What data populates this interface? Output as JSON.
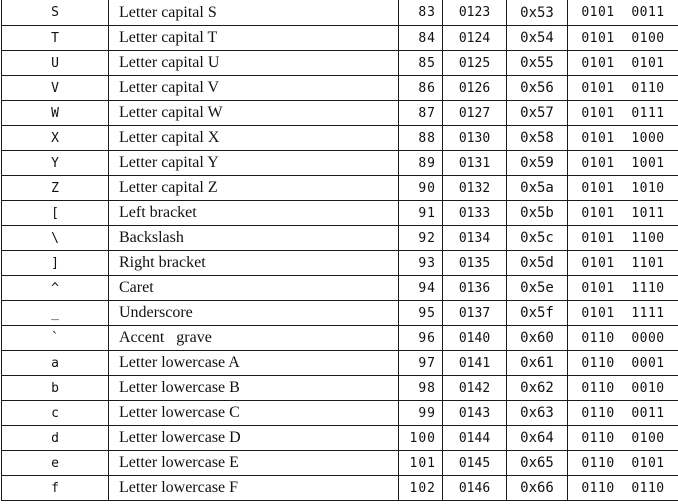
{
  "rows": [
    {
      "char": "S",
      "desc": "Letter capital S",
      "dec": "83",
      "oct": "0123",
      "hex": "0x53",
      "bin": "0101  0011"
    },
    {
      "char": "T",
      "desc": "Letter capital T",
      "dec": "84",
      "oct": "0124",
      "hex": "0x54",
      "bin": "0101  0100"
    },
    {
      "char": "U",
      "desc": "Letter capital U",
      "dec": "85",
      "oct": "0125",
      "hex": "0x55",
      "bin": "0101  0101"
    },
    {
      "char": "V",
      "desc": "Letter capital V",
      "dec": "86",
      "oct": "0126",
      "hex": "0x56",
      "bin": "0101  0110"
    },
    {
      "char": "W",
      "desc": "Letter capital W",
      "dec": "87",
      "oct": "0127",
      "hex": "0x57",
      "bin": "0101  0111"
    },
    {
      "char": "X",
      "desc": "Letter capital X",
      "dec": "88",
      "oct": "0130",
      "hex": "0x58",
      "bin": "0101  1000"
    },
    {
      "char": "Y",
      "desc": "Letter capital Y",
      "dec": "89",
      "oct": "0131",
      "hex": "0x59",
      "bin": "0101  1001"
    },
    {
      "char": "Z",
      "desc": "Letter capital Z",
      "dec": "90",
      "oct": "0132",
      "hex": "0x5a",
      "bin": "0101  1010"
    },
    {
      "char": "[",
      "desc": "Left bracket",
      "dec": "91",
      "oct": "0133",
      "hex": "0x5b",
      "bin": "0101  1011"
    },
    {
      "char": "\\",
      "desc": "Backslash",
      "dec": "92",
      "oct": "0134",
      "hex": "0x5c",
      "bin": "0101  1100"
    },
    {
      "char": "]",
      "desc": "Right bracket",
      "dec": "93",
      "oct": "0135",
      "hex": "0x5d",
      "bin": "0101  1101"
    },
    {
      "char": "^",
      "desc": "Caret",
      "dec": "94",
      "oct": "0136",
      "hex": "0x5e",
      "bin": "0101  1110"
    },
    {
      "char": "_",
      "desc": "Underscore",
      "dec": "95",
      "oct": "0137",
      "hex": "0x5f",
      "bin": "0101  1111"
    },
    {
      "char": "`",
      "desc": "Accent   grave",
      "dec": "96",
      "oct": "0140",
      "hex": "0x60",
      "bin": "0110  0000"
    },
    {
      "char": "a",
      "desc": "Letter lowercase A",
      "dec": "97",
      "oct": "0141",
      "hex": "0x61",
      "bin": "0110  0001"
    },
    {
      "char": "b",
      "desc": "Letter lowercase B",
      "dec": "98",
      "oct": "0142",
      "hex": "0x62",
      "bin": "0110  0010"
    },
    {
      "char": "c",
      "desc": "Letter lowercase C",
      "dec": "99",
      "oct": "0143",
      "hex": "0x63",
      "bin": "0110  0011"
    },
    {
      "char": "d",
      "desc": "Letter lowercase D",
      "dec": "100",
      "oct": "0144",
      "hex": "0x64",
      "bin": "0110  0100"
    },
    {
      "char": "e",
      "desc": "Letter lowercase E",
      "dec": "101",
      "oct": "0145",
      "hex": "0x65",
      "bin": "0110  0101"
    },
    {
      "char": "f",
      "desc": "Letter lowercase F",
      "dec": "102",
      "oct": "0146",
      "hex": "0x66",
      "bin": "0110  0110"
    }
  ]
}
